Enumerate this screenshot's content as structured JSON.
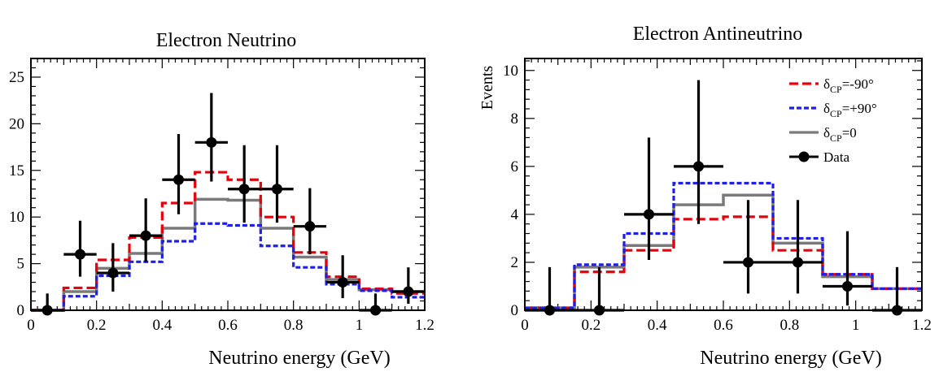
{
  "chart_data": [
    {
      "type": "line",
      "title": "Electron Neutrino",
      "xlabel": "Neutrino energy (GeV)",
      "ylabel": "",
      "xlim": [
        0,
        1.2
      ],
      "ylim": [
        0,
        27
      ],
      "xticks": [
        "0",
        "0.2",
        "0.4",
        "0.6",
        "0.8",
        "1",
        "1.2"
      ],
      "xtick_values": [
        0,
        0.2,
        0.4,
        0.6,
        0.8,
        1.0,
        1.2
      ],
      "yticks": [
        "0",
        "5",
        "10",
        "15",
        "20",
        "25"
      ],
      "ytick_values": [
        0,
        5,
        10,
        15,
        20,
        25
      ],
      "bin_edges": [
        0,
        0.1,
        0.2,
        0.3,
        0.4,
        0.5,
        0.6,
        0.7,
        0.8,
        0.9,
        1.0,
        1.1,
        1.2
      ],
      "series": [
        {
          "key": "minus90",
          "color": "#e8000b",
          "dash": "dashed",
          "values": [
            0,
            2.4,
            5.4,
            7.8,
            11.5,
            14.8,
            14.0,
            10.0,
            6.2,
            3.6,
            2.3,
            1.8
          ]
        },
        {
          "key": "plus90",
          "color": "#1f1fe6",
          "dash": "dotted",
          "values": [
            0,
            1.5,
            3.7,
            5.2,
            7.4,
            9.3,
            9.1,
            6.9,
            4.6,
            2.8,
            2.1,
            1.4
          ]
        },
        {
          "key": "zero",
          "color": "#7a7a7a",
          "dash": "solid",
          "values": [
            0,
            2.0,
            4.5,
            6.1,
            8.8,
            11.9,
            11.8,
            8.8,
            5.7,
            3.3,
            2.2,
            2.0
          ]
        }
      ],
      "data_points": {
        "x": [
          0.05,
          0.15,
          0.25,
          0.35,
          0.45,
          0.55,
          0.65,
          0.75,
          0.85,
          0.95,
          1.05,
          1.15
        ],
        "y": [
          0,
          6,
          4,
          8,
          14,
          18,
          13,
          13,
          9,
          3,
          0,
          2
        ],
        "yerr_low": [
          0,
          2.4,
          2.0,
          2.8,
          3.7,
          4.2,
          3.6,
          3.6,
          3.0,
          1.7,
          0,
          1.3
        ],
        "yerr_high": [
          1.8,
          3.6,
          3.2,
          4.0,
          4.9,
          5.3,
          4.7,
          4.7,
          4.1,
          2.9,
          1.8,
          2.6
        ]
      },
      "legend": []
    },
    {
      "type": "line",
      "title": "Electron Antineutrino",
      "xlabel": "Neutrino energy (GeV)",
      "ylabel": "Events",
      "xlim": [
        0,
        1.2
      ],
      "ylim": [
        0,
        10.5
      ],
      "xticks": [
        "0",
        "0.2",
        "0.4",
        "0.6",
        "0.8",
        "1",
        "1.2"
      ],
      "xtick_values": [
        0,
        0.2,
        0.4,
        0.6,
        0.8,
        1.0,
        1.2
      ],
      "yticks": [
        "0",
        "2",
        "4",
        "6",
        "8",
        "10"
      ],
      "ytick_values": [
        0,
        2,
        4,
        6,
        8,
        10
      ],
      "bin_edges": [
        0,
        0.15,
        0.3,
        0.45,
        0.6,
        0.75,
        0.9,
        1.05,
        1.2
      ],
      "series": [
        {
          "key": "minus90",
          "color": "#e8000b",
          "dash": "dashed",
          "values": [
            0.1,
            1.6,
            2.5,
            3.8,
            3.9,
            2.5,
            1.5,
            0.9
          ]
        },
        {
          "key": "plus90",
          "color": "#1f1fe6",
          "dash": "dotted",
          "values": [
            0.1,
            1.9,
            3.2,
            5.3,
            5.3,
            3.0,
            1.5,
            0.9
          ]
        },
        {
          "key": "zero",
          "color": "#7a7a7a",
          "dash": "solid",
          "values": [
            0.1,
            1.8,
            2.7,
            4.4,
            4.8,
            2.8,
            1.4,
            0.9
          ]
        }
      ],
      "data_points": {
        "x": [
          0.075,
          0.225,
          0.375,
          0.525,
          0.675,
          0.825,
          0.975,
          1.125
        ],
        "y": [
          0,
          0,
          4,
          6,
          2,
          2,
          1,
          0
        ],
        "yerr_low": [
          0,
          0,
          1.9,
          2.4,
          1.3,
          1.3,
          0.8,
          0
        ],
        "yerr_high": [
          1.8,
          1.8,
          3.2,
          3.6,
          2.6,
          2.6,
          2.3,
          1.8
        ]
      },
      "legend": [
        {
          "series": "minus90",
          "base": "δ",
          "sub": "CP",
          "rest": "=-90°"
        },
        {
          "series": "plus90",
          "base": "δ",
          "sub": "CP",
          "rest": "=+90°"
        },
        {
          "series": "zero",
          "base": "δ",
          "sub": "CP",
          "rest": "=0"
        },
        {
          "series": "data",
          "base": "Data",
          "sub": "",
          "rest": ""
        }
      ]
    }
  ]
}
